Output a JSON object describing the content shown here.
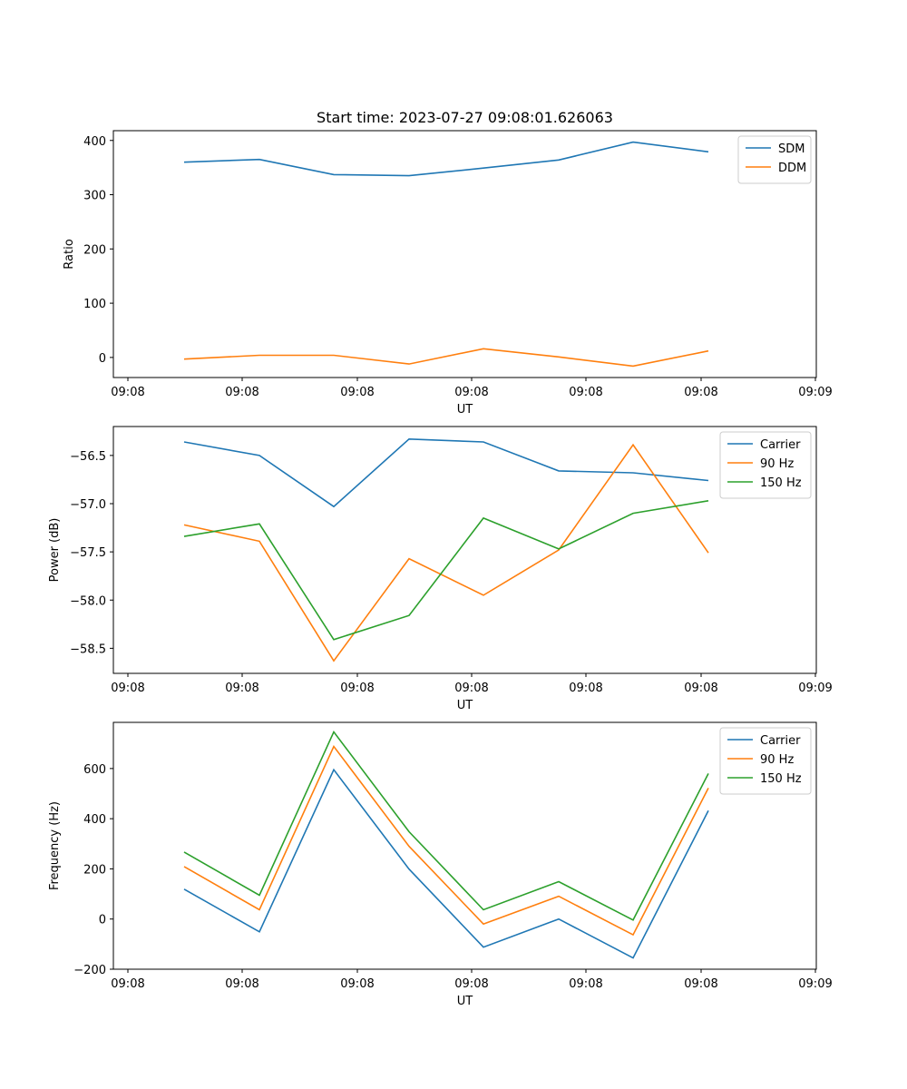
{
  "chart_data": [
    {
      "type": "line",
      "title": "Start time: 2023-07-27 09:08:01.626063",
      "xlabel": "UT",
      "ylabel": "Ratio",
      "x_tick_labels": [
        "09:08",
        "09:08",
        "09:08",
        "09:08",
        "09:08",
        "09:08",
        "09:09"
      ],
      "y_ticks": [
        0,
        100,
        200,
        300,
        400
      ],
      "y_tick_labels": [
        "0",
        "100",
        "200",
        "300",
        "400"
      ],
      "ylim": [
        -37,
        418
      ],
      "legend_position": "top-right",
      "series": [
        {
          "name": "SDM",
          "color": "#1f77b4",
          "values": [
            360,
            365,
            337,
            335,
            349,
            364,
            397,
            379
          ]
        },
        {
          "name": "DDM",
          "color": "#ff7f0e",
          "values": [
            -3,
            4,
            4,
            -12,
            16,
            1,
            -16,
            12
          ]
        }
      ]
    },
    {
      "type": "line",
      "title": "",
      "xlabel": "UT",
      "ylabel": "Power (dB)",
      "x_tick_labels": [
        "09:08",
        "09:08",
        "09:08",
        "09:08",
        "09:08",
        "09:08",
        "09:09"
      ],
      "y_ticks": [
        -56.5,
        -57.0,
        -57.5,
        -58.0,
        -58.5
      ],
      "y_tick_labels": [
        "−56.5",
        "−57.0",
        "−57.5",
        "−58.0",
        "−58.5"
      ],
      "ylim": [
        -58.76,
        -56.2
      ],
      "legend_position": "top-right",
      "series": [
        {
          "name": "Carrier",
          "color": "#1f77b4",
          "values": [
            -56.36,
            -56.5,
            -57.03,
            -56.33,
            -56.36,
            -56.66,
            -56.68,
            -56.76
          ]
        },
        {
          "name": "90 Hz",
          "color": "#ff7f0e",
          "values": [
            -57.22,
            -57.39,
            -58.63,
            -57.57,
            -57.95,
            -57.48,
            -56.39,
            -57.51
          ]
        },
        {
          "name": "150 Hz",
          "color": "#2ca02c",
          "values": [
            -57.34,
            -57.21,
            -58.41,
            -58.16,
            -57.15,
            -57.47,
            -57.1,
            -56.97
          ]
        }
      ]
    },
    {
      "type": "line",
      "title": "",
      "xlabel": "UT",
      "ylabel": "Frequency (Hz)",
      "x_tick_labels": [
        "09:08",
        "09:08",
        "09:08",
        "09:08",
        "09:08",
        "09:08",
        "09:09"
      ],
      "y_ticks": [
        -200,
        0,
        200,
        400,
        600
      ],
      "y_tick_labels": [
        "−200",
        "0",
        "200",
        "400",
        "600"
      ],
      "ylim": [
        -200,
        784
      ],
      "legend_position": "top-right",
      "series": [
        {
          "name": "Carrier",
          "color": "#1f77b4",
          "values": [
            119,
            -51,
            595,
            199,
            -112,
            0,
            -155,
            432
          ]
        },
        {
          "name": "90 Hz",
          "color": "#ff7f0e",
          "values": [
            209,
            37,
            688,
            290,
            -20,
            91,
            -63,
            522
          ]
        },
        {
          "name": "150 Hz",
          "color": "#2ca02c",
          "values": [
            267,
            95,
            746,
            348,
            37,
            149,
            -4,
            580
          ]
        }
      ]
    }
  ]
}
